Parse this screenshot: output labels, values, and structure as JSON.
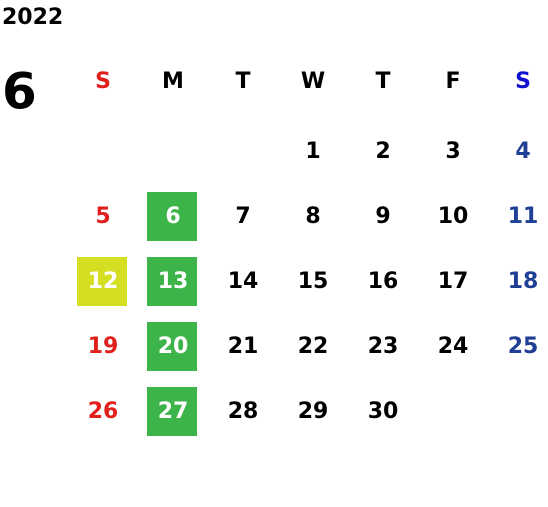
{
  "calendar": {
    "year": "2022",
    "month": "6",
    "weekdays": [
      "S",
      "M",
      "T",
      "W",
      "T",
      "F",
      "S"
    ],
    "weekday_colors": [
      "#e0201c",
      "#000000",
      "#000000",
      "#000000",
      "#000000",
      "#000000",
      "#1010d0"
    ],
    "day_colors": [
      "#e0201c",
      "#000000",
      "#000000",
      "#000000",
      "#000000",
      "#000000",
      "#1f3f94"
    ],
    "weeks": [
      [
        null,
        null,
        null,
        1,
        2,
        3,
        4
      ],
      [
        5,
        6,
        7,
        8,
        9,
        10,
        11
      ],
      [
        12,
        13,
        14,
        15,
        16,
        17,
        18
      ],
      [
        19,
        20,
        21,
        22,
        23,
        24,
        25
      ],
      [
        26,
        27,
        28,
        29,
        30,
        null,
        null
      ]
    ],
    "highlights": [
      {
        "color": "#3cb44a",
        "days": [
          6,
          13,
          20,
          27
        ]
      },
      {
        "color": "#d4df22",
        "days": [
          12
        ]
      }
    ]
  }
}
